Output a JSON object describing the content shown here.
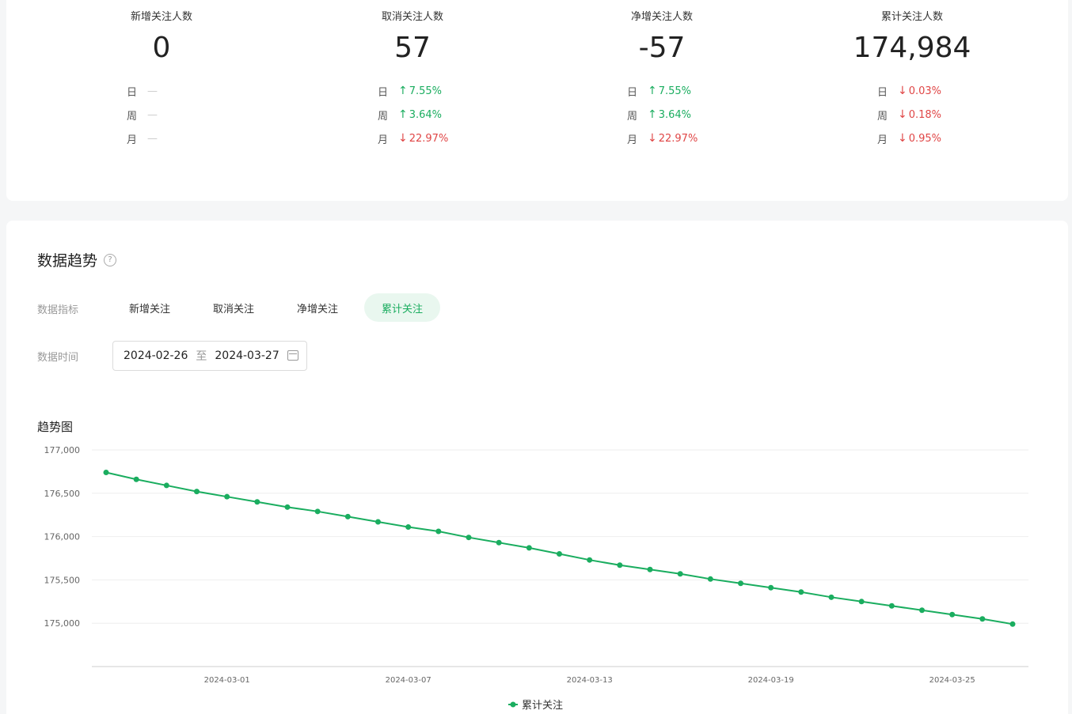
{
  "stats": [
    {
      "title": "新增关注人数",
      "value": "0",
      "rows": [
        {
          "label": "日",
          "text": "—",
          "dir": "none"
        },
        {
          "label": "周",
          "text": "—",
          "dir": "none"
        },
        {
          "label": "月",
          "text": "—",
          "dir": "none"
        }
      ]
    },
    {
      "title": "取消关注人数",
      "value": "57",
      "rows": [
        {
          "label": "日",
          "text": "7.55%",
          "dir": "up"
        },
        {
          "label": "周",
          "text": "3.64%",
          "dir": "up"
        },
        {
          "label": "月",
          "text": "22.97%",
          "dir": "down"
        }
      ]
    },
    {
      "title": "净增关注人数",
      "value": "-57",
      "rows": [
        {
          "label": "日",
          "text": "7.55%",
          "dir": "up"
        },
        {
          "label": "周",
          "text": "3.64%",
          "dir": "up"
        },
        {
          "label": "月",
          "text": "22.97%",
          "dir": "down"
        }
      ]
    },
    {
      "title": "累计关注人数",
      "value": "174,984",
      "rows": [
        {
          "label": "日",
          "text": "0.03%",
          "dir": "down"
        },
        {
          "label": "周",
          "text": "0.18%",
          "dir": "down"
        },
        {
          "label": "月",
          "text": "0.95%",
          "dir": "down"
        }
      ]
    }
  ],
  "arrows": {
    "up": "↑",
    "down": "↓"
  },
  "section": {
    "title": "数据趋势",
    "help": "?"
  },
  "filters": {
    "metric_label": "数据指标",
    "tabs": [
      "新增关注",
      "取消关注",
      "净增关注",
      "累计关注"
    ],
    "active_tab": "累计关注",
    "time_label": "数据时间",
    "start_date": "2024-02-26",
    "separator": "至",
    "end_date": "2024-03-27"
  },
  "colors": {
    "accent": "#1aad5f",
    "up": "#1aad5f",
    "down": "#e04646"
  },
  "chart_data": {
    "type": "line",
    "title": "趋势图",
    "x": [
      "2024-02-26",
      "2024-02-27",
      "2024-02-28",
      "2024-02-29",
      "2024-03-01",
      "2024-03-02",
      "2024-03-03",
      "2024-03-04",
      "2024-03-05",
      "2024-03-06",
      "2024-03-07",
      "2024-03-08",
      "2024-03-09",
      "2024-03-10",
      "2024-03-11",
      "2024-03-12",
      "2024-03-13",
      "2024-03-14",
      "2024-03-15",
      "2024-03-16",
      "2024-03-17",
      "2024-03-18",
      "2024-03-19",
      "2024-03-20",
      "2024-03-21",
      "2024-03-22",
      "2024-03-23",
      "2024-03-24",
      "2024-03-25",
      "2024-03-26",
      "2024-03-27"
    ],
    "series": [
      {
        "name": "累计关注",
        "values": [
          176740,
          176660,
          176590,
          176520,
          176460,
          176400,
          176340,
          176290,
          176230,
          176170,
          176110,
          176060,
          175990,
          175930,
          175870,
          175800,
          175730,
          175670,
          175620,
          175570,
          175510,
          175460,
          175410,
          175360,
          175300,
          175250,
          175200,
          175150,
          175100,
          175050,
          174990
        ]
      }
    ],
    "xticks": [
      "2024-03-01",
      "2024-03-07",
      "2024-03-13",
      "2024-03-19",
      "2024-03-25"
    ],
    "yticks": [
      175000,
      175500,
      176000,
      176500,
      177000
    ],
    "ylim": [
      174500,
      177000
    ],
    "grid": true,
    "legend": "bottom-center"
  }
}
